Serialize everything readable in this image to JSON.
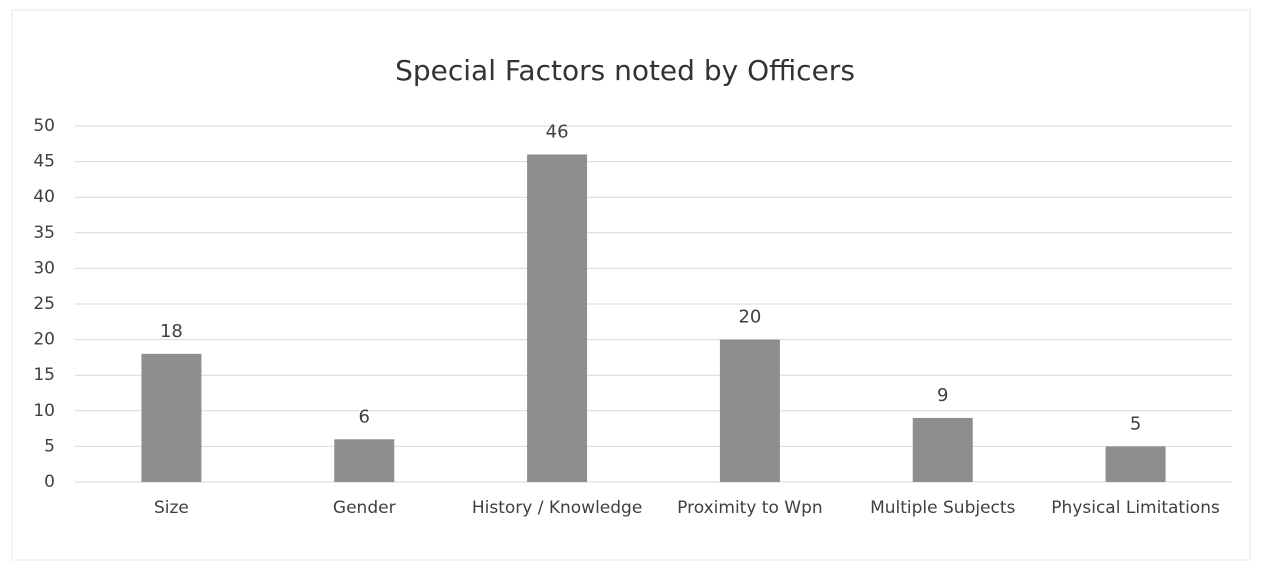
{
  "chart_data": {
    "type": "bar",
    "title": "Special Factors noted by Officers",
    "categories": [
      "Size",
      "Gender",
      "History / Knowledge",
      "Proximity to Wpn",
      "Multiple Subjects",
      "Physical Limitations"
    ],
    "values": [
      18,
      6,
      46,
      20,
      9,
      5
    ],
    "color": "#8e8e8e",
    "ylim": [
      0,
      50
    ],
    "yticks": [
      0,
      5,
      10,
      15,
      20,
      25,
      30,
      35,
      40,
      45,
      50
    ],
    "grid": true
  }
}
